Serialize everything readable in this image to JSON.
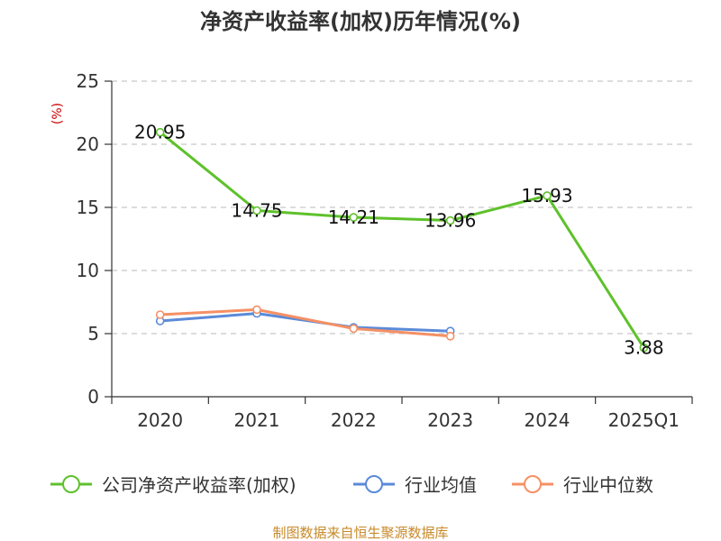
{
  "chart_data": {
    "type": "line",
    "title": "净资产收益率(加权)历年情况(%)",
    "ylabel": "(%)",
    "xlabel": "",
    "categories": [
      "2020",
      "2021",
      "2022",
      "2023",
      "2024",
      "2025Q1"
    ],
    "ylim": [
      0,
      25
    ],
    "yticks": [
      0,
      5,
      10,
      15,
      20,
      25
    ],
    "grid": true,
    "legend_position": "bottom",
    "series": [
      {
        "name": "公司净资产收益率(加权)",
        "color": "#5ec12b",
        "values": [
          20.95,
          14.75,
          14.21,
          13.96,
          15.93,
          3.88
        ],
        "labels": [
          "20.95",
          "14.75",
          "14.21",
          "13.96",
          "15.93",
          "3.88"
        ]
      },
      {
        "name": "行业均值",
        "color": "#5b8ad8",
        "values": [
          6.0,
          6.6,
          5.5,
          5.2,
          null,
          null
        ]
      },
      {
        "name": "行业中位数",
        "color": "#f59064",
        "values": [
          6.5,
          6.9,
          5.4,
          4.8,
          null,
          null
        ]
      }
    ]
  },
  "footer": {
    "source": "制图数据来自恒生聚源数据库"
  }
}
